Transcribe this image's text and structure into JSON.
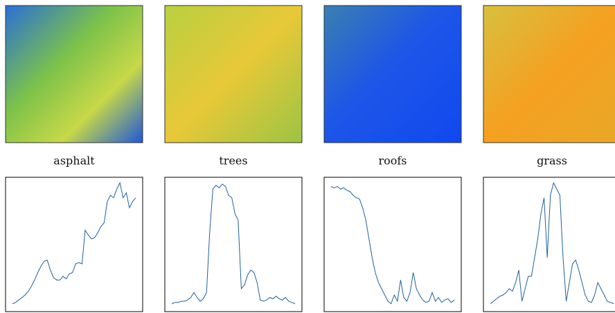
{
  "chart_data": [
    {
      "type": "line",
      "title": "asphalt",
      "color": "#1f5f9f",
      "ylim": [
        0,
        1
      ],
      "values": [
        0.03,
        0.04,
        0.06,
        0.08,
        0.1,
        0.13,
        0.17,
        0.22,
        0.28,
        0.33,
        0.37,
        0.38,
        0.3,
        0.24,
        0.22,
        0.22,
        0.25,
        0.23,
        0.27,
        0.28,
        0.35,
        0.36,
        0.35,
        0.62,
        0.58,
        0.55,
        0.56,
        0.6,
        0.65,
        0.68,
        0.85,
        0.9,
        0.88,
        0.95,
        1.0,
        0.88,
        0.92,
        0.8,
        0.85,
        0.88
      ]
    },
    {
      "type": "line",
      "title": "trees",
      "color": "#1f5f9f",
      "ylim": [
        0,
        1
      ],
      "values": [
        0.03,
        0.04,
        0.04,
        0.05,
        0.05,
        0.06,
        0.08,
        0.12,
        0.08,
        0.05,
        0.07,
        0.12,
        0.6,
        0.95,
        0.98,
        0.96,
        0.99,
        0.97,
        0.9,
        0.88,
        0.75,
        0.7,
        0.15,
        0.18,
        0.26,
        0.3,
        0.28,
        0.2,
        0.06,
        0.05,
        0.06,
        0.08,
        0.07,
        0.09,
        0.07,
        0.06,
        0.08,
        0.05,
        0.04,
        0.03
      ]
    },
    {
      "type": "line",
      "title": "roofs",
      "color": "#1f5f9f",
      "ylim": [
        0,
        1
      ],
      "values": [
        0.97,
        0.96,
        0.97,
        0.95,
        0.96,
        0.94,
        0.93,
        0.9,
        0.88,
        0.87,
        0.8,
        0.7,
        0.55,
        0.4,
        0.28,
        0.2,
        0.15,
        0.1,
        0.05,
        0.03,
        0.1,
        0.05,
        0.22,
        0.08,
        0.05,
        0.12,
        0.28,
        0.15,
        0.1,
        0.06,
        0.04,
        0.05,
        0.12,
        0.05,
        0.08,
        0.04,
        0.06,
        0.07,
        0.04,
        0.06
      ]
    },
    {
      "type": "line",
      "title": "grass",
      "color": "#1f5f9f",
      "ylim": [
        0,
        1
      ],
      "values": [
        0.03,
        0.05,
        0.07,
        0.09,
        0.1,
        0.12,
        0.15,
        0.13,
        0.2,
        0.3,
        0.05,
        0.15,
        0.25,
        0.25,
        0.4,
        0.55,
        0.75,
        0.88,
        0.4,
        0.9,
        1.0,
        0.95,
        0.9,
        0.4,
        0.05,
        0.2,
        0.35,
        0.38,
        0.3,
        0.2,
        0.1,
        0.05,
        0.04,
        0.1,
        0.2,
        0.15,
        0.1,
        0.05,
        0.04,
        0.03
      ]
    }
  ]
}
